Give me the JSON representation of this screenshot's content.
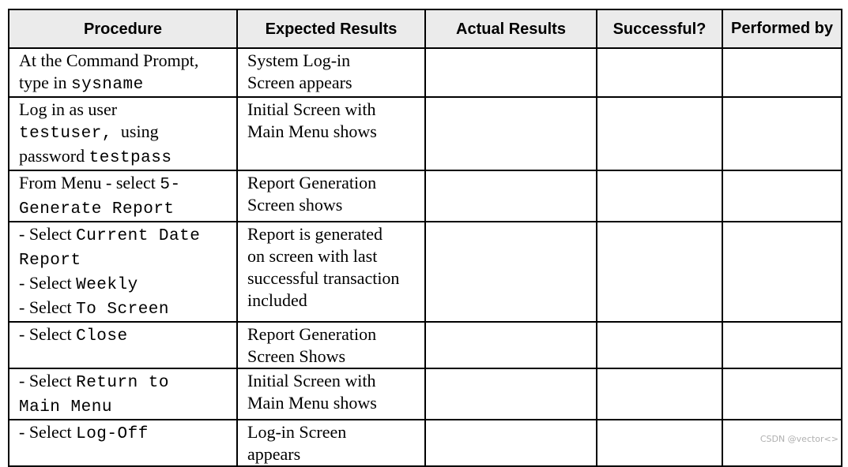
{
  "table": {
    "headers": [
      "Procedure",
      "Expected Results",
      "Actual Results",
      "Successful?",
      "Performed by"
    ],
    "rows": [
      {
        "procedure": [
          [
            {
              "t": "At the Command Prompt,"
            }
          ],
          [
            {
              "t": "type in "
            },
            {
              "t": "sysname",
              "mono": true
            }
          ]
        ],
        "expected": [
          "System Log-in",
          "Screen appears"
        ]
      },
      {
        "procedure": [
          [
            {
              "t": "Log in as user"
            }
          ],
          [
            {
              "t": "testuser,",
              "mono": true
            },
            {
              "t": "  using"
            }
          ],
          [
            {
              "t": "password "
            },
            {
              "t": "testpass",
              "mono": true
            }
          ]
        ],
        "expected": [
          "Initial Screen with",
          "Main Menu shows"
        ]
      },
      {
        "procedure": [
          [
            {
              "t": "From Menu - select "
            },
            {
              "t": "5-",
              "mono": true
            }
          ],
          [
            {
              "t": "Generate Report",
              "mono": true
            }
          ]
        ],
        "expected": [
          "Report Generation",
          "Screen shows"
        ]
      },
      {
        "procedure": [
          [
            {
              "t": "- Select "
            },
            {
              "t": "Current Date",
              "mono": true
            }
          ],
          [
            {
              "t": "Report",
              "mono": true
            }
          ],
          [
            {
              "t": "- Select "
            },
            {
              "t": "Weekly",
              "mono": true
            }
          ],
          [
            {
              "t": "- Select "
            },
            {
              "t": "To Screen",
              "mono": true
            }
          ]
        ],
        "expected": [
          "Report is generated",
          "on screen with last",
          "successful transaction",
          "included"
        ]
      },
      {
        "procedure": [
          [
            {
              "t": "- Select "
            },
            {
              "t": "Close",
              "mono": true
            }
          ]
        ],
        "expected": [
          "Report Generation",
          "Screen Shows"
        ]
      },
      {
        "procedure": [
          [
            {
              "t": "- Select "
            },
            {
              "t": "Return to",
              "mono": true
            }
          ],
          [
            {
              "t": "Main Menu",
              "mono": true
            }
          ]
        ],
        "expected": [
          "Initial Screen with",
          "Main Menu shows"
        ]
      },
      {
        "procedure": [
          [
            {
              "t": "- Select "
            },
            {
              "t": "Log-Off",
              "mono": true
            }
          ]
        ],
        "expected": [
          "Log-in Screen",
          "appears"
        ]
      }
    ]
  },
  "watermark": "CSDN @vector<>"
}
